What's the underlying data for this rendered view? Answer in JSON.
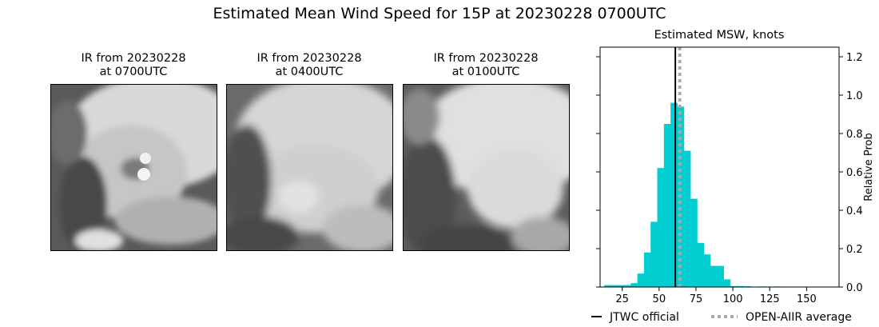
{
  "figure": {
    "title": "Estimated Mean Wind Speed for 15P at 20230228 0700UTC"
  },
  "ir_panels": [
    {
      "line1": "IR from 20230228",
      "line2": "at 0700UTC"
    },
    {
      "line1": "IR from 20230228",
      "line2": "at 0400UTC"
    },
    {
      "line1": "IR from 20230228",
      "line2": "at 0100UTC"
    }
  ],
  "colors": {
    "bar": "#00CED1",
    "jtwc": "#000000",
    "open_aiir": "#A9A9A9"
  },
  "chart_data": {
    "type": "bar",
    "title": "Estimated MSW, knots",
    "xlabel": "",
    "ylabel": "Relative Prob",
    "xlim": [
      10,
      172
    ],
    "ylim": [
      0,
      1.25
    ],
    "xticks": [
      25,
      50,
      75,
      100,
      125,
      150
    ],
    "yticks": [
      0.0,
      0.2,
      0.4,
      0.6,
      0.8,
      1.0,
      1.2
    ],
    "ytick_labels": [
      "0.0",
      "0.2",
      "0.4",
      "0.6",
      "0.8",
      "1.0",
      "1.2"
    ],
    "bin_width": 4.5,
    "bins": [
      {
        "x": 15,
        "value": 0.01
      },
      {
        "x": 19.5,
        "value": 0.01
      },
      {
        "x": 24,
        "value": 0.01
      },
      {
        "x": 28.5,
        "value": 0.01
      },
      {
        "x": 33,
        "value": 0.02
      },
      {
        "x": 37.5,
        "value": 0.07
      },
      {
        "x": 42,
        "value": 0.18
      },
      {
        "x": 46.5,
        "value": 0.34
      },
      {
        "x": 51,
        "value": 0.62
      },
      {
        "x": 55.5,
        "value": 0.85
      },
      {
        "x": 60,
        "value": 0.96
      },
      {
        "x": 64.5,
        "value": 0.94
      },
      {
        "x": 69,
        "value": 0.71
      },
      {
        "x": 73.5,
        "value": 0.46
      },
      {
        "x": 78,
        "value": 0.23
      },
      {
        "x": 82.5,
        "value": 0.17
      },
      {
        "x": 87,
        "value": 0.11
      },
      {
        "x": 91.5,
        "value": 0.11
      },
      {
        "x": 96,
        "value": 0.04
      },
      {
        "x": 100.5,
        "value": 0.005
      },
      {
        "x": 105,
        "value": 0.005
      },
      {
        "x": 110,
        "value": 0.004
      },
      {
        "x": 120,
        "value": 0.003
      },
      {
        "x": 130,
        "value": 0.003
      },
      {
        "x": 140,
        "value": 0.002
      },
      {
        "x": 150,
        "value": 0.002
      },
      {
        "x": 160,
        "value": 0.002
      },
      {
        "x": 165,
        "value": 0.002
      }
    ],
    "reference_lines": [
      {
        "name": "JTWC official",
        "x": 61,
        "style": "solid"
      },
      {
        "name": "OPEN-AIIR average",
        "x": 64,
        "style": "dotted"
      }
    ],
    "legend": {
      "placement": "bottom-right"
    }
  }
}
